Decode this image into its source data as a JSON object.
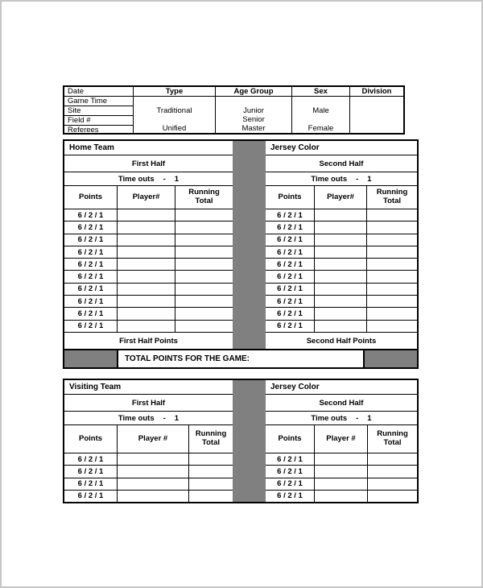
{
  "page": {
    "background": "#ffffff",
    "frame_color": "#c6c6c6"
  },
  "colors": {
    "spacer_gray": "#808080",
    "line_black": "#000000"
  },
  "header_table": {
    "left_rows": [
      "Date",
      "Game Time",
      "Site",
      "Field #",
      "Referees"
    ],
    "columns": [
      {
        "title": "Type",
        "lines": [
          "",
          "Traditional",
          "",
          "Unified"
        ]
      },
      {
        "title": "Age Group",
        "lines": [
          "",
          "Junior",
          "Senior",
          "Master"
        ]
      },
      {
        "title": "Sex",
        "lines": [
          "",
          "Male",
          "",
          "Female"
        ]
      },
      {
        "title": "Division",
        "lines": [
          "",
          "",
          "",
          ""
        ]
      }
    ]
  },
  "sections": {
    "home": {
      "left": {
        "title": "Home Team",
        "half": "First Half",
        "timeouts": {
          "label": "Time outs",
          "dash": "-",
          "value": "1"
        },
        "cols": [
          "Points",
          "Player#",
          "Running Total"
        ],
        "rows": [
          {
            "points": "6 / 2 / 1",
            "player": "",
            "running": ""
          },
          {
            "points": "6 / 2 / 1",
            "player": "",
            "running": ""
          },
          {
            "points": "6 / 2 / 1",
            "player": "",
            "running": ""
          },
          {
            "points": "6 / 2 / 1",
            "player": "",
            "running": ""
          },
          {
            "points": "6 / 2 / 1",
            "player": "",
            "running": ""
          },
          {
            "points": "6 / 2 / 1",
            "player": "",
            "running": ""
          },
          {
            "points": "6 / 2 / 1",
            "player": "",
            "running": ""
          },
          {
            "points": "6 / 2 / 1",
            "player": "",
            "running": ""
          },
          {
            "points": "6 / 2 / 1",
            "player": "",
            "running": ""
          },
          {
            "points": "6 / 2 / 1",
            "player": "",
            "running": ""
          }
        ],
        "footer": "First Half Points"
      },
      "right": {
        "title": "Jersey Color",
        "half": "Second Half",
        "timeouts": {
          "label": "Time outs",
          "dash": "-",
          "value": "1"
        },
        "cols": [
          "Points",
          "Player#",
          "Running Total"
        ],
        "rows": [
          {
            "points": "6 / 2 / 1",
            "player": "",
            "running": ""
          },
          {
            "points": "6 / 2 / 1",
            "player": "",
            "running": ""
          },
          {
            "points": "6 / 2 / 1",
            "player": "",
            "running": ""
          },
          {
            "points": "6 / 2 / 1",
            "player": "",
            "running": ""
          },
          {
            "points": "6 / 2 / 1",
            "player": "",
            "running": ""
          },
          {
            "points": "6 / 2 / 1",
            "player": "",
            "running": ""
          },
          {
            "points": "6 / 2 / 1",
            "player": "",
            "running": ""
          },
          {
            "points": "6 / 2 / 1",
            "player": "",
            "running": ""
          },
          {
            "points": "6 / 2 / 1",
            "player": "",
            "running": ""
          },
          {
            "points": "6 / 2 / 1",
            "player": "",
            "running": ""
          }
        ],
        "footer": "Second Half Points"
      },
      "total_label": "TOTAL POINTS FOR THE GAME:"
    },
    "visiting": {
      "left": {
        "title": "Visiting Team",
        "half": "First Half",
        "timeouts": {
          "label": "Time outs",
          "dash": "-",
          "value": "1"
        },
        "cols": [
          "Points",
          "Player #",
          "Running Total"
        ],
        "rows": [
          {
            "points": "6 / 2 / 1",
            "player": "",
            "running": ""
          },
          {
            "points": "6 / 2 / 1",
            "player": "",
            "running": ""
          },
          {
            "points": "6 / 2 / 1",
            "player": "",
            "running": ""
          },
          {
            "points": "6 / 2 / 1",
            "player": "",
            "running": ""
          }
        ]
      },
      "right": {
        "title": "Jersey Color",
        "half": "Second Half",
        "timeouts": {
          "label": "Time outs",
          "dash": "-",
          "value": "1"
        },
        "cols": [
          "Points",
          "Player #",
          "Running Total"
        ],
        "rows": [
          {
            "points": "6 / 2 / 1",
            "player": "",
            "running": ""
          },
          {
            "points": "6 / 2 / 1",
            "player": "",
            "running": ""
          },
          {
            "points": "6 / 2 / 1",
            "player": "",
            "running": ""
          },
          {
            "points": "6 / 2 / 1",
            "player": "",
            "running": ""
          }
        ]
      }
    }
  }
}
